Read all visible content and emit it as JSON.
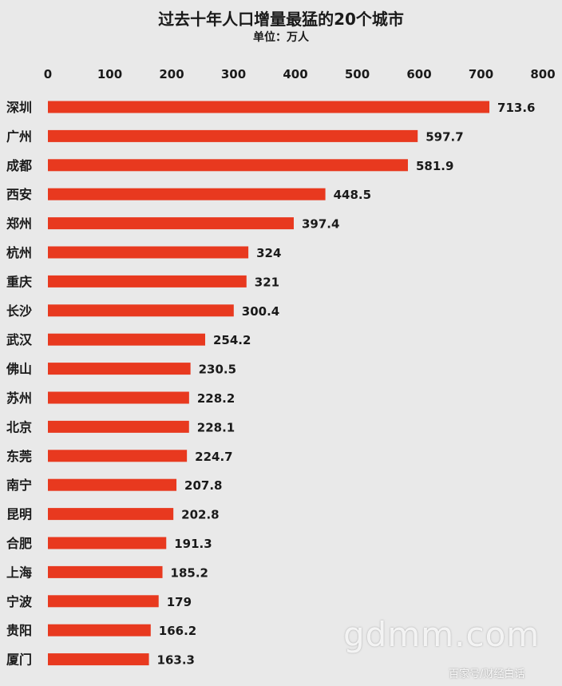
{
  "title": "过去十年人口增量最猛的20个城市",
  "subtitle": "单位：万人",
  "watermark": "gdmm.com",
  "source": "百家号/财经白话",
  "colors": {
    "bar": "#e8391f",
    "background": "#e9e9e9",
    "text": "#1a1a1a"
  },
  "chart_data": {
    "type": "bar",
    "orientation": "horizontal",
    "title": "过去十年人口增量最猛的20个城市",
    "subtitle": "单位：万人",
    "xlim": [
      0,
      800
    ],
    "x_ticks": [
      0,
      100,
      200,
      300,
      400,
      500,
      600,
      700,
      800
    ],
    "x_axis_position": "top",
    "grid": false,
    "categories": [
      "深圳",
      "广州",
      "成都",
      "西安",
      "郑州",
      "杭州",
      "重庆",
      "长沙",
      "武汉",
      "佛山",
      "苏州",
      "北京",
      "东莞",
      "南宁",
      "昆明",
      "合肥",
      "上海",
      "宁波",
      "贵阳",
      "厦门"
    ],
    "values": [
      713.6,
      597.7,
      581.9,
      448.5,
      397.4,
      324,
      321,
      300.4,
      254.2,
      230.5,
      228.2,
      228.1,
      224.7,
      207.8,
      202.8,
      191.3,
      185.2,
      179,
      166.2,
      163.3
    ],
    "value_labels": [
      "713.6",
      "597.7",
      "581.9",
      "448.5",
      "397.4",
      "324",
      "321",
      "300.4",
      "254.2",
      "230.5",
      "228.2",
      "228.1",
      "224.7",
      "207.8",
      "202.8",
      "191.3",
      "185.2",
      "179",
      "166.2",
      "163.3"
    ]
  }
}
